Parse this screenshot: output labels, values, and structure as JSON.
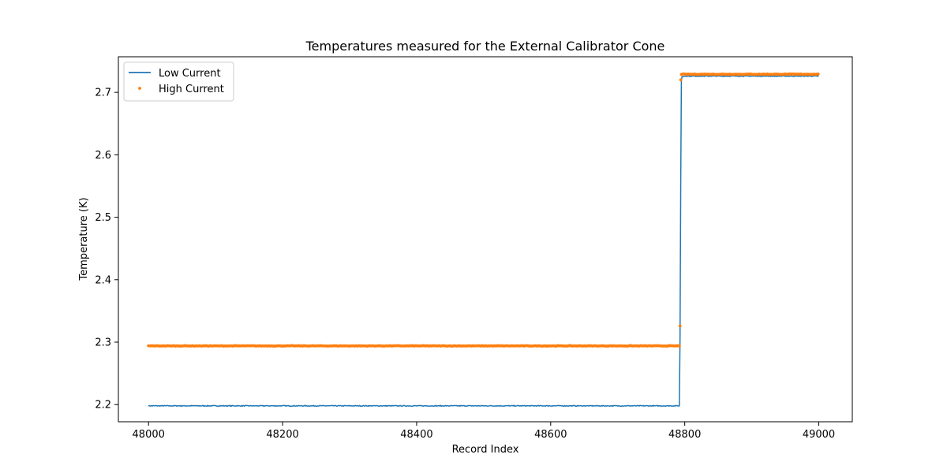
{
  "chart_data": {
    "type": "line",
    "title": "Temperatures measured for the External Calibrator Cone",
    "xlabel": "Record Index",
    "ylabel": "Temperature (K)",
    "xlim": [
      47955,
      49050
    ],
    "ylim": [
      2.1725,
      2.757
    ],
    "xticks": [
      48000,
      48200,
      48400,
      48600,
      48800,
      49000
    ],
    "yticks": [
      2.2,
      2.3,
      2.4,
      2.5,
      2.6,
      2.7
    ],
    "ytick_labels": [
      "2.2",
      "2.3",
      "2.4",
      "2.5",
      "2.6",
      "2.7"
    ],
    "grid": false,
    "legend_position": "upper-left",
    "series": [
      {
        "name": "Low Current",
        "type": "line",
        "color": "#1f77b4",
        "x": [
          48000,
          48100,
          48200,
          48300,
          48400,
          48500,
          48600,
          48700,
          48792,
          48793,
          48794,
          48795,
          48796,
          48800,
          48850,
          48900,
          48950,
          49000
        ],
        "y": [
          2.198,
          2.198,
          2.198,
          2.198,
          2.198,
          2.198,
          2.198,
          2.198,
          2.198,
          2.31,
          2.55,
          2.72,
          2.725,
          2.726,
          2.726,
          2.726,
          2.726,
          2.726
        ]
      },
      {
        "name": "High Current",
        "type": "scatter",
        "color": "#ff7f0e",
        "segments": [
          {
            "x_start": 48000,
            "x_end": 48792,
            "y": 2.294
          },
          {
            "x_start": 48795,
            "x_end": 49000,
            "y": 2.729
          }
        ],
        "transition_points": [
          {
            "x": 48793,
            "y": 2.326
          },
          {
            "x": 48794,
            "y": 2.72
          }
        ]
      }
    ]
  }
}
